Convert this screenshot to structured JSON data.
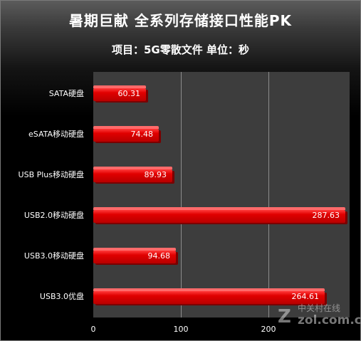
{
  "chart_data": {
    "type": "bar",
    "orientation": "horizontal",
    "title": "暑期巨献 全系列存储接口性能PK",
    "subtitle": "项目：5G零散文件 单位：秒",
    "xlabel": "",
    "ylabel": "",
    "categories": [
      "SATA硬盘",
      "eSATA移动硬盘",
      "USB Plus移动硬盘",
      "USB2.0移动硬盘",
      "USB3.0移动硬盘",
      "USB3.0优盘"
    ],
    "values": [
      60.31,
      74.48,
      89.93,
      287.63,
      94.68,
      264.61
    ],
    "value_labels": [
      "60.31",
      "74.48",
      "89.93",
      "287.63",
      "94.68",
      "264.61"
    ],
    "xlim": [
      0,
      290
    ],
    "xticks": [
      0,
      100,
      200
    ],
    "xtick_labels": [
      "0",
      "100",
      "200"
    ],
    "grid": true,
    "legend": "none",
    "bar_color": "#e00000",
    "plot_background": "#3d3d3d",
    "background": "#000000"
  },
  "watermark": {
    "mark": "Z",
    "top_text": "中关村在线",
    "bottom_text": "zol.com.cn"
  }
}
